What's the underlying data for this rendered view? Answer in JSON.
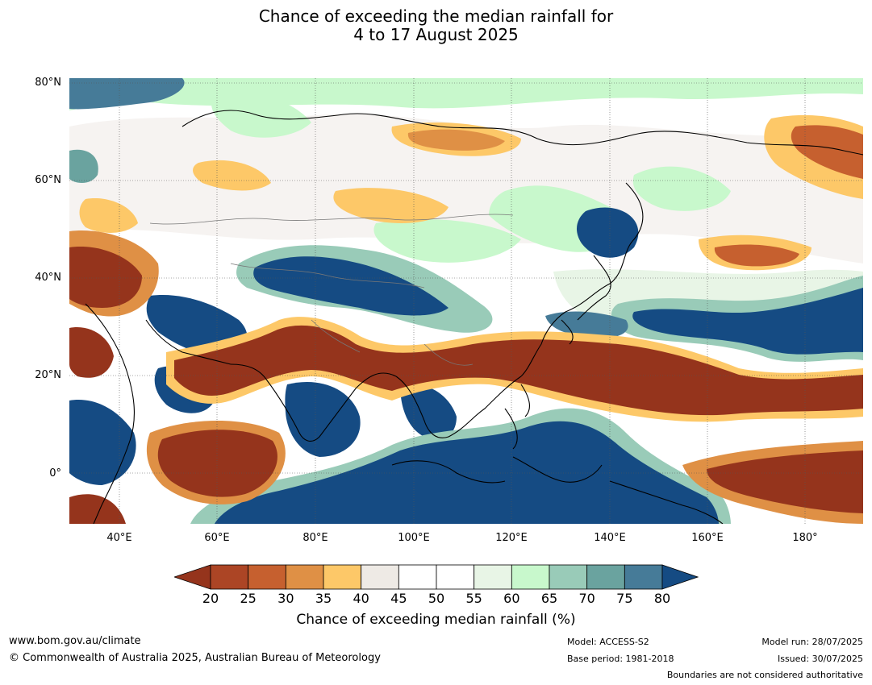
{
  "title": {
    "line1": "Chance of exceeding the median rainfall for",
    "line2": "4 to 17 August 2025"
  },
  "map": {
    "lat_labels": [
      "80°N",
      "60°N",
      "40°N",
      "20°N",
      "0°"
    ],
    "lon_labels": [
      "40°E",
      "60°E",
      "80°E",
      "100°E",
      "120°E",
      "140°E",
      "160°E",
      "180°"
    ]
  },
  "colorbar": {
    "ticks": [
      "20",
      "25",
      "30",
      "35",
      "40",
      "45",
      "50",
      "55",
      "60",
      "65",
      "70",
      "75",
      "80"
    ],
    "colors": [
      "#95341c",
      "#ac4525",
      "#c6602f",
      "#df9045",
      "#fdc868",
      "#eeeae5",
      "#ffffff",
      "#ffffff",
      "#e8f5e6",
      "#c8f8cc",
      "#99cbb8",
      "#6aa39f",
      "#467b98",
      "#154b83"
    ],
    "title": "Chance of exceeding median rainfall (%)"
  },
  "footer": {
    "website": "www.bom.gov.au/climate",
    "copyright": "© Commonwealth of Australia 2025, Australian Bureau of Meteorology",
    "model": "Model: ACCESS-S2",
    "base_period": "Base period: 1981-2018",
    "model_run": "Model run: 28/07/2025",
    "issued": "Issued: 30/07/2025",
    "disclaimer": "Boundaries are not considered authoritative"
  }
}
